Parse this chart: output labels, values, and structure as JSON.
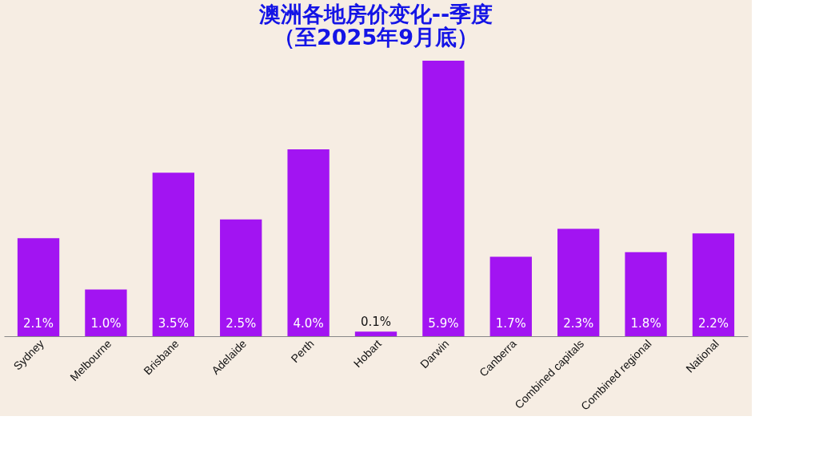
{
  "chart_data": {
    "type": "bar",
    "title": [
      "澳洲各地房价变化--季度",
      "（至2025年9月底）"
    ],
    "categories": [
      "Sydney",
      "Melbourne",
      "Brisbane",
      "Adelaide",
      "Perth",
      "Hobart",
      "Darwin",
      "Canberra",
      "Combined capitals",
      "Combined regional",
      "National"
    ],
    "values": [
      2.1,
      1.0,
      3.5,
      2.5,
      4.0,
      0.1,
      5.9,
      1.7,
      2.3,
      1.8,
      2.2
    ],
    "value_labels": [
      "2.1%",
      "1.0%",
      "3.5%",
      "2.5%",
      "4.0%",
      "0.1%",
      "5.9%",
      "1.7%",
      "2.3%",
      "1.8%",
      "2.2%"
    ],
    "color": "#a214f2",
    "tick_labels": "x",
    "grid": false
  }
}
